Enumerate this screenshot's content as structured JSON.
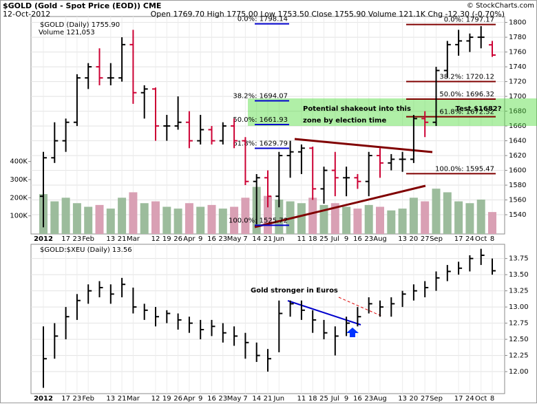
{
  "chart_data": [
    {
      "type": "ohlc",
      "title": "$GOLD (Gold - Spot Price (EOD)) CME",
      "subtitle": "12-Oct-2012",
      "stats": "Open 1769.70 High 1775.00 Low 1753.50 Close 1755.90 Volume 121.1K Chg -12.30 (-0.70%)",
      "credit": "© StockCharts.com",
      "legend": "$GOLD (Daily) 1755.90",
      "categories": [
        "2012",
        null,
        "17",
        "23",
        "Feb",
        null,
        "13",
        "21",
        "Mar",
        null,
        "12",
        "19",
        "26",
        "Apr",
        "9",
        "16",
        "23",
        "May",
        "7",
        "14",
        "21",
        "Jun",
        null,
        "11",
        "18",
        "25",
        "Jul",
        "9",
        "16",
        "23",
        "Aug",
        null,
        "13",
        "20",
        "27",
        "Sep",
        null,
        "17",
        "24",
        "Oct",
        "8"
      ],
      "open": [
        1565,
        1617,
        1640,
        1665,
        1725,
        1740,
        1725,
        1725,
        1770,
        1705,
        1710,
        1660,
        1660,
        1665,
        1640,
        1655,
        1640,
        1660,
        1640,
        1585,
        1590,
        1565,
        1620,
        1625,
        1630,
        1575,
        1600,
        1590,
        1590,
        1585,
        1620,
        1610,
        1615,
        1615,
        1670,
        1665,
        1735,
        1770,
        1775,
        1780,
        1769.7
      ],
      "high": [
        1625,
        1665,
        1670,
        1730,
        1745,
        1765,
        1745,
        1780,
        1790,
        1715,
        1712,
        1675,
        1700,
        1680,
        1675,
        1660,
        1665,
        1670,
        1645,
        1595,
        1600,
        1625,
        1640,
        1635,
        1632,
        1605,
        1625,
        1605,
        1595,
        1625,
        1630,
        1622,
        1625,
        1675,
        1680,
        1740,
        1775,
        1790,
        1785,
        1795,
        1775
      ],
      "low": [
        1523,
        1610,
        1625,
        1660,
        1710,
        1715,
        1715,
        1720,
        1690,
        1670,
        1640,
        1640,
        1655,
        1630,
        1635,
        1635,
        1635,
        1630,
        1580,
        1527,
        1550,
        1550,
        1590,
        1595,
        1560,
        1555,
        1565,
        1565,
        1575,
        1565,
        1590,
        1600,
        1598,
        1610,
        1645,
        1660,
        1725,
        1755,
        1760,
        1765,
        1753.5
      ],
      "close": [
        1617,
        1640,
        1665,
        1725,
        1740,
        1725,
        1725,
        1770,
        1705,
        1710,
        1660,
        1660,
        1665,
        1640,
        1655,
        1640,
        1660,
        1640,
        1585,
        1590,
        1565,
        1620,
        1625,
        1630,
        1575,
        1600,
        1590,
        1590,
        1585,
        1620,
        1610,
        1615,
        1615,
        1670,
        1665,
        1735,
        1770,
        1775,
        1780,
        1780,
        1755.9
      ],
      "up_color": "#000000",
      "down_color": "#cc0033",
      "ylim": [
        1514,
        1808
      ],
      "yticks": [
        1540,
        1560,
        1580,
        1600,
        1620,
        1640,
        1660,
        1680,
        1700,
        1720,
        1740,
        1760,
        1780,
        1800
      ],
      "grid": true,
      "volume": {
        "name": "Volume 121,053",
        "values": [
          220000,
          180000,
          200000,
          170000,
          150000,
          160000,
          140000,
          200000,
          230000,
          170000,
          180000,
          150000,
          140000,
          170000,
          150000,
          160000,
          140000,
          150000,
          200000,
          260000,
          210000,
          190000,
          180000,
          170000,
          200000,
          160000,
          170000,
          150000,
          140000,
          160000,
          150000,
          130000,
          140000,
          200000,
          180000,
          250000,
          230000,
          180000,
          170000,
          190000,
          121053
        ],
        "up_color": "#9cbc9c",
        "down_color": "#d9a0b4",
        "ylim": [
          0,
          1200000
        ],
        "yticks": [
          {
            "value": 100000,
            "label": "100K"
          },
          {
            "value": 200000,
            "label": "200K"
          },
          {
            "value": 300000,
            "label": "300K"
          },
          {
            "value": 400000,
            "label": "400K"
          }
        ]
      },
      "fib_left": {
        "color": "#0000cc",
        "levels": [
          {
            "value": 1798.14,
            "label": "0.0%: 1798.14"
          },
          {
            "value": 1694.07,
            "label": "38.2%: 1694.07"
          },
          {
            "value": 1661.93,
            "label": "50.0%: 1661.93"
          },
          {
            "value": 1629.79,
            "label": "61.8%: 1629.79"
          },
          {
            "value": 1525.72,
            "label": "100.0%: 1525.72"
          }
        ]
      },
      "fib_right": {
        "color": "#800000",
        "levels": [
          {
            "value": 1797.17,
            "label": "0.0%: 1797.17"
          },
          {
            "value": 1720.12,
            "label": "38.2%: 1720.12"
          },
          {
            "value": 1696.32,
            "label": "50.0%: 1696.32"
          },
          {
            "value": 1672.52,
            "label": "61.8%: 1672.52"
          },
          {
            "value": 1595.47,
            "label": "100.0%: 1595.47"
          }
        ]
      },
      "annotations": [
        "Potential shakeout into this zone by election time",
        "Test $1682?"
      ]
    },
    {
      "type": "hlc",
      "legend": "$GOLD:$XEU (Daily) 13.56",
      "categories": [
        "2012",
        null,
        "17",
        "23",
        "Feb",
        null,
        "13",
        "21",
        "Mar",
        null,
        "12",
        "19",
        "26",
        "Apr",
        "9",
        "16",
        "23",
        "May",
        "7",
        "14",
        "21",
        "Jun",
        null,
        "11",
        "18",
        "25",
        "Jul",
        "9",
        "16",
        "23",
        "Aug",
        null,
        "13",
        "20",
        "27",
        "Sep",
        null,
        "17",
        "24",
        "Oct",
        "8"
      ],
      "high": [
        12.7,
        12.75,
        13.0,
        13.2,
        13.35,
        13.4,
        13.35,
        13.45,
        13.3,
        13.05,
        13.0,
        12.95,
        12.9,
        12.85,
        12.8,
        12.8,
        12.75,
        12.7,
        12.6,
        12.45,
        12.35,
        13.1,
        13.1,
        13.1,
        12.95,
        12.8,
        12.7,
        12.85,
        13.0,
        13.15,
        13.1,
        13.15,
        13.25,
        13.35,
        13.4,
        13.55,
        13.65,
        13.7,
        13.8,
        13.9,
        13.75
      ],
      "low": [
        11.75,
        12.2,
        12.5,
        12.8,
        13.05,
        13.15,
        13.05,
        13.15,
        12.9,
        12.8,
        12.7,
        12.75,
        12.65,
        12.6,
        12.5,
        12.55,
        12.45,
        12.4,
        12.2,
        12.15,
        12.0,
        12.3,
        12.85,
        12.8,
        12.6,
        12.5,
        12.25,
        12.55,
        12.7,
        12.9,
        12.85,
        12.85,
        13.0,
        13.1,
        13.15,
        13.25,
        13.4,
        13.5,
        13.55,
        13.65,
        13.5
      ],
      "close": [
        12.2,
        12.55,
        12.85,
        13.1,
        13.25,
        13.3,
        13.2,
        13.35,
        13.0,
        12.95,
        12.85,
        12.9,
        12.8,
        12.75,
        12.65,
        12.7,
        12.6,
        12.55,
        12.45,
        12.25,
        12.2,
        12.9,
        13.05,
        12.95,
        12.8,
        12.6,
        12.55,
        12.75,
        12.85,
        13.05,
        13.0,
        13.05,
        13.2,
        13.25,
        13.3,
        13.45,
        13.55,
        13.6,
        13.75,
        13.8,
        13.56
      ],
      "color": "#000000",
      "ylim": [
        11.66,
        13.97
      ],
      "yticks": [
        {
          "value": 12,
          "label": "12.00"
        },
        {
          "value": 12.25,
          "label": "12.25"
        },
        {
          "value": 12.5,
          "label": "12.50"
        },
        {
          "value": 12.75,
          "label": "12.75"
        },
        {
          "value": 13,
          "label": "13.00"
        },
        {
          "value": 13.25,
          "label": "13.25"
        },
        {
          "value": 13.5,
          "label": "13.50"
        },
        {
          "value": 13.75,
          "label": "13.75"
        }
      ],
      "grid": true,
      "annotations": [
        "Gold stronger in Euros"
      ]
    }
  ]
}
